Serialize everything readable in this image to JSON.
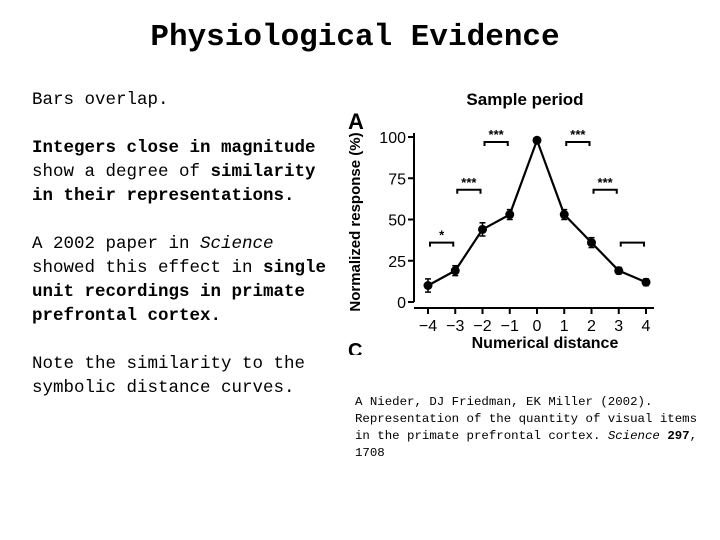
{
  "title": "Physiological Evidence",
  "left": {
    "p1": "Bars overlap.",
    "p2": {
      "a": "Integers close in magnitude",
      "b": " show a degree of ",
      "c": "similarity in their representations."
    },
    "p3": {
      "a": "A 2002 paper in ",
      "b": "Science",
      "c": " showed this effect in ",
      "d": "single unit recordings in primate prefrontal cortex."
    },
    "p4": "Note the similarity to the symbolic distance curves."
  },
  "caption": {
    "authors": "A Nieder, DJ Friedman, EK Miller (2002).",
    "title": "Representation of the quantity of visual items in the primate prefrontal cortex.",
    "journal": "Science",
    "volume": "297",
    "pages": ", 1708"
  },
  "chart_data": {
    "type": "line",
    "panel_label": "A",
    "title": "Sample period",
    "xlabel": "Numerical distance",
    "ylabel": "Normalized response (%)",
    "x": [
      -4,
      -3,
      -2,
      -1,
      0,
      1,
      2,
      3,
      4
    ],
    "x_tick_labels": [
      "−4",
      "−3",
      "−2",
      "−1",
      "0",
      "1",
      "2",
      "3",
      "4"
    ],
    "y": [
      10,
      19,
      44,
      53,
      98,
      53,
      36,
      19,
      12
    ],
    "y_error": [
      4,
      3,
      4,
      3,
      0,
      3,
      3,
      2,
      2
    ],
    "y_ticks": [
      0,
      25,
      50,
      75,
      100
    ],
    "ylim": [
      0,
      100
    ],
    "xlim": [
      -4,
      4
    ],
    "significance": [
      {
        "x1": -4,
        "x2": -3,
        "y": 36,
        "label": "*"
      },
      {
        "x1": -3,
        "x2": -2,
        "y": 68,
        "label": "***"
      },
      {
        "x1": -2,
        "x2": -1,
        "y": 97,
        "label": "***"
      },
      {
        "x1": 1,
        "x2": 2,
        "y": 97,
        "label": "***"
      },
      {
        "x1": 2,
        "x2": 3,
        "y": 68,
        "label": "***"
      },
      {
        "x1": 3,
        "x2": 4,
        "y": 36,
        "label": ""
      }
    ],
    "next_panel_label": "C"
  }
}
